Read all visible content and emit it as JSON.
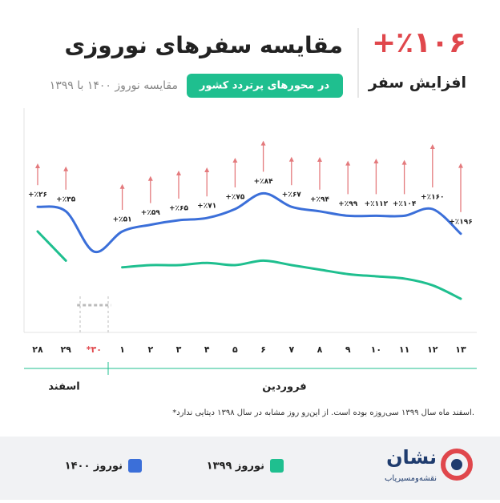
{
  "header": {
    "headline": "+٪۱۰۶",
    "headline_caption": "افزایش سفر",
    "title": "مقایسه سفرهای نوروزی",
    "subtitle": "مقایسه نوروز ۱۴۰۰ با ۱۳۹۹",
    "badge": "در محورهای پرتردد کشور"
  },
  "chart_data": {
    "type": "line",
    "categories": [
      "۲۸",
      "۲۹",
      "*۳۰",
      "۱",
      "۲",
      "۳",
      "۴",
      "۵",
      "۶",
      "۷",
      "۸",
      "۹",
      "۱۰",
      "۱۱",
      "۱۲",
      "۱۳"
    ],
    "series": [
      {
        "name": "نوروز ۱۴۰۰",
        "color": "#3b6fd9",
        "values": [
          56,
          54,
          36,
          45,
          48,
          50,
          51,
          55,
          62,
          56,
          54,
          52,
          52,
          52,
          55,
          44
        ]
      },
      {
        "name": "نوروز ۱۳۹۹",
        "color": "#1fbf8f",
        "values": [
          45,
          32,
          null,
          29,
          30,
          30,
          31,
          30,
          32,
          30,
          28,
          26,
          25,
          24,
          21,
          15
        ]
      }
    ],
    "growth": {
      "values": [
        26,
        35,
        null,
        51,
        59,
        65,
        71,
        75,
        84,
        67,
        94,
        99,
        112,
        104,
        160,
        196
      ],
      "value_labels": [
        "+٪۲۶",
        "+٪۳۵",
        null,
        "+٪۵۱",
        "+٪۵۹",
        "+٪۶۵",
        "+٪۷۱",
        "+٪۷۵",
        "+٪۸۴",
        "+٪۶۷",
        "+٪۹۴",
        "+٪۹۹",
        "+٪۱۱۲",
        "+٪۱۰۴",
        "+٪۱۶۰",
        "+٪۱۹۶"
      ]
    },
    "ylim": [
      0,
      100
    ],
    "periods": [
      "اسفند",
      "فروردین"
    ]
  },
  "footnote": "*اسفند ماه سال ۱۳۹۹ سی‌روزه بوده است. از این‌رو روز مشابه در سال ۱۳۹۸ دیتایی ندارد.",
  "brand": {
    "name": "نشان",
    "tagline": "نقشه‌ومسیریاب"
  }
}
